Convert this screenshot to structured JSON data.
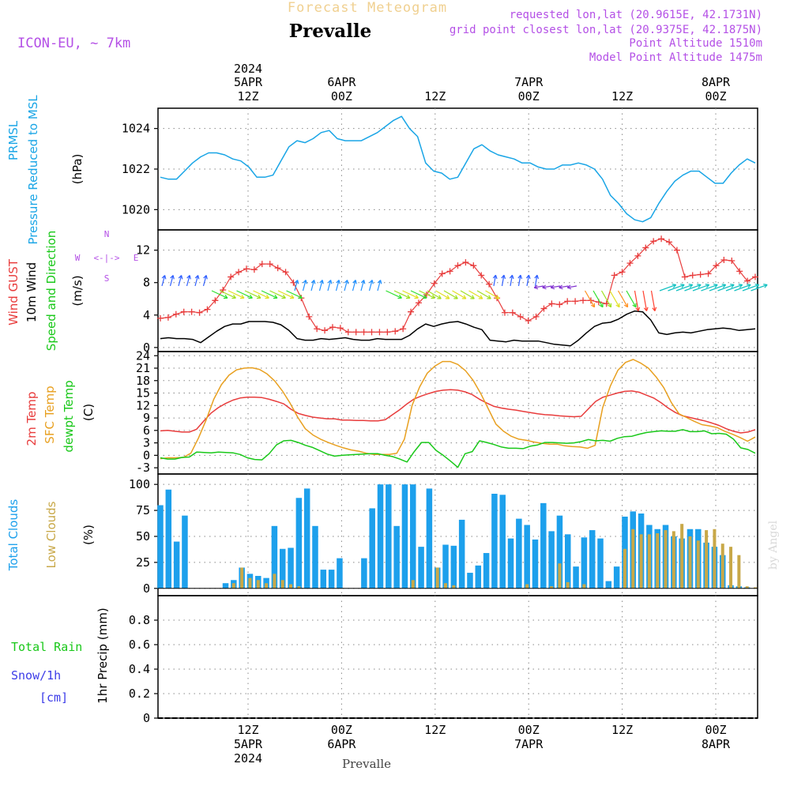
{
  "header": {
    "title": "Forecast Meteogram",
    "location": "Prevalle",
    "model": "ICON-EU, ~ 7km",
    "requested": "requested lon,lat (20.9615E, 42.1731N)",
    "grid_point": "grid point closest lon,lat (20.9375E, 42.1875N)",
    "point_altitude": "Point Altitude 1510m",
    "model_altitude": "Model Point Altitude 1475m",
    "footer_location": "Prevalle",
    "credit": "by Angel"
  },
  "time_axis": {
    "start": "5APR 03Z",
    "step_hours": 1,
    "hours": 64,
    "top_ticks": [
      {
        "hour": 9,
        "l1": "2024",
        "l2": "5APR",
        "l3": "12Z"
      },
      {
        "hour": 21,
        "l1": "",
        "l2": "6APR",
        "l3": "00Z"
      },
      {
        "hour": 33,
        "l1": "",
        "l2": "",
        "l3": "12Z"
      },
      {
        "hour": 45,
        "l1": "",
        "l2": "7APR",
        "l3": "00Z"
      },
      {
        "hour": 57,
        "l1": "",
        "l2": "",
        "l3": "12Z"
      },
      {
        "hour": 69,
        "l1": "",
        "l2": "8APR",
        "l3": "00Z"
      }
    ],
    "bottom_ticks": [
      {
        "hour": 9,
        "l1": "12Z",
        "l2": "5APR",
        "l3": "2024"
      },
      {
        "hour": 21,
        "l1": "00Z",
        "l2": "6APR",
        "l3": ""
      },
      {
        "hour": 33,
        "l1": "12Z",
        "l2": "",
        "l3": ""
      },
      {
        "hour": 45,
        "l1": "00Z",
        "l2": "7APR",
        "l3": ""
      },
      {
        "hour": 57,
        "l1": "12Z",
        "l2": "",
        "l3": ""
      },
      {
        "hour": 69,
        "l1": "00Z",
        "l2": "8APR",
        "l3": ""
      }
    ]
  },
  "colors": {
    "pressure": "#19a5e6",
    "gust": "#e83c3c",
    "wind": "#000000",
    "temp2m": "#e83c3c",
    "sfc": "#e8a020",
    "dew": "#19c819",
    "total_clouds": "#1da0ec",
    "low_clouds": "#c8a848",
    "rain": "#19c819",
    "snow": "#3c3ce8",
    "direction": "#19c819",
    "compass": "#b450e6",
    "grid": "#888888"
  },
  "chart_data": [
    {
      "id": "pressure",
      "type": "line",
      "ylabel_1": "PRMSL",
      "ylabel_2": "Pressure Reduced to MSL",
      "unit": "(hPa)",
      "ylim": [
        1019,
        1025
      ],
      "yticks": [
        1020,
        1022,
        1024
      ],
      "series": [
        {
          "name": "PRMSL",
          "values": [
            1021.6,
            1021.5,
            1021.5,
            1021.9,
            1022.3,
            1022.6,
            1022.8,
            1022.8,
            1022.7,
            1022.5,
            1022.4,
            1022.1,
            1021.6,
            1021.6,
            1021.7,
            1022.4,
            1023.1,
            1023.4,
            1023.3,
            1023.5,
            1023.8,
            1023.9,
            1023.5,
            1023.4,
            1023.4,
            1023.4,
            1023.6,
            1023.8,
            1024.1,
            1024.4,
            1024.6,
            1024.0,
            1023.6,
            1022.3,
            1021.9,
            1021.8,
            1021.5,
            1021.6,
            1022.3,
            1023.0,
            1023.2,
            1022.9,
            1022.7,
            1022.6,
            1022.5,
            1022.3,
            1022.3,
            1022.1,
            1022.0,
            1022.0,
            1022.2,
            1022.2,
            1022.3,
            1022.2,
            1022.0,
            1021.5,
            1020.7,
            1020.3,
            1019.8,
            1019.5,
            1019.4,
            1019.6,
            1020.3,
            1020.9,
            1021.4,
            1021.7,
            1021.9,
            1021.9,
            1021.6,
            1021.3,
            1021.3,
            1021.8,
            1022.2,
            1022.5,
            1022.3
          ]
        }
      ]
    },
    {
      "id": "wind",
      "type": "line",
      "ylabel_1": "Wind GUST",
      "ylabel_2": "10m Wind",
      "ylabel_3": "Speed and Direction",
      "unit": "(m/s)",
      "compass": {
        "n": "N",
        "s": "S",
        "e": "E",
        "w": "W",
        "axis": "<-|->"
      },
      "ylim": [
        -0.5,
        14.5
      ],
      "yticks": [
        0,
        4,
        8,
        12
      ],
      "series": [
        {
          "name": "Wind GUST",
          "values": [
            3.6,
            3.7,
            4.1,
            4.4,
            4.4,
            4.3,
            4.7,
            5.8,
            7.1,
            8.7,
            9.3,
            9.7,
            9.6,
            10.3,
            10.3,
            9.8,
            9.3,
            8.0,
            6.1,
            3.8,
            2.3,
            2.1,
            2.5,
            2.4,
            1.9,
            1.9,
            1.9,
            1.9,
            1.9,
            1.9,
            2.0,
            2.3,
            4.4,
            5.5,
            6.5,
            7.9,
            9.1,
            9.4,
            10.1,
            10.5,
            10.1,
            8.9,
            7.8,
            6.1,
            4.3,
            4.3,
            3.8,
            3.3,
            3.8,
            4.8,
            5.4,
            5.3,
            5.7,
            5.7,
            5.8,
            5.8,
            5.6,
            5.4,
            8.9,
            9.3,
            10.4,
            11.3,
            12.3,
            13.1,
            13.4,
            13.0,
            12.0,
            8.7,
            8.9,
            9.0,
            9.1,
            10.1,
            10.8,
            10.7,
            9.4,
            8.2,
            8.7
          ]
        },
        {
          "name": "10m Wind",
          "values": [
            1.1,
            1.2,
            1.1,
            1.1,
            1.0,
            0.6,
            1.3,
            2.0,
            2.6,
            2.9,
            2.9,
            3.2,
            3.2,
            3.2,
            3.1,
            2.8,
            2.1,
            1.1,
            0.9,
            0.9,
            1.1,
            1.0,
            1.1,
            1.2,
            1.0,
            0.9,
            0.9,
            1.1,
            1.0,
            1.0,
            1.0,
            1.5,
            2.3,
            2.9,
            2.6,
            2.9,
            3.1,
            3.2,
            2.9,
            2.5,
            2.2,
            0.9,
            0.8,
            0.7,
            0.9,
            0.8,
            0.8,
            0.8,
            0.6,
            0.4,
            0.3,
            0.2,
            0.9,
            1.8,
            2.6,
            3.0,
            3.1,
            3.5,
            4.1,
            4.5,
            4.4,
            3.4,
            1.8,
            1.6,
            1.8,
            1.9,
            1.8,
            2.0,
            2.2,
            2.3,
            2.4,
            2.3,
            2.1,
            2.2,
            2.3
          ]
        }
      ]
    },
    {
      "id": "temperature",
      "type": "line",
      "ylabel_1": "2m Temp",
      "ylabel_2": "SFC Temp",
      "ylabel_3": "dewpt Temp",
      "unit": "(C)",
      "ylim": [
        -4.5,
        25
      ],
      "yticks": [
        -3,
        0,
        3,
        6,
        9,
        12,
        15,
        18,
        21,
        24
      ],
      "series": [
        {
          "name": "2m Temp",
          "values": [
            5.9,
            6.0,
            5.8,
            5.6,
            5.6,
            6.3,
            8.3,
            10.2,
            11.5,
            12.5,
            13.3,
            13.8,
            14.0,
            14.0,
            13.9,
            13.5,
            13.0,
            12.4,
            11.1,
            10.1,
            9.6,
            9.2,
            9.0,
            8.8,
            8.8,
            8.5,
            8.5,
            8.4,
            8.4,
            8.3,
            8.3,
            8.6,
            9.8,
            11.0,
            12.4,
            13.6,
            14.3,
            14.9,
            15.4,
            15.7,
            15.8,
            15.7,
            15.3,
            14.6,
            13.5,
            12.6,
            11.8,
            11.4,
            11.1,
            10.9,
            10.6,
            10.3,
            10.0,
            9.8,
            9.7,
            9.5,
            9.4,
            9.3,
            9.4,
            11.2,
            13.0,
            14.0,
            14.5,
            15.0,
            15.4,
            15.5,
            15.2,
            14.5,
            13.8,
            12.7,
            11.4,
            10.3,
            9.5,
            9.1,
            8.7,
            8.3,
            7.8,
            7.2,
            6.4,
            5.8,
            5.4,
            5.6,
            6.2
          ]
        },
        {
          "name": "SFC Temp",
          "values": [
            -0.8,
            -0.6,
            -0.6,
            -0.5,
            0.5,
            4.2,
            8.5,
            13.5,
            17.0,
            19.3,
            20.6,
            21.0,
            21.1,
            20.7,
            19.6,
            17.9,
            15.5,
            12.6,
            9.2,
            6.4,
            4.9,
            3.9,
            3.1,
            2.4,
            1.8,
            1.3,
            1.0,
            0.5,
            0.2,
            0.2,
            0.2,
            0.5,
            3.9,
            12.0,
            16.5,
            19.8,
            21.5,
            22.6,
            22.6,
            21.9,
            20.4,
            18.1,
            14.9,
            11.2,
            7.5,
            5.8,
            4.6,
            3.9,
            3.6,
            3.2,
            2.9,
            2.7,
            2.7,
            2.3,
            2.1,
            2.0,
            1.7,
            2.4,
            11.5,
            16.7,
            20.5,
            22.4,
            23.1,
            22.2,
            21.0,
            18.9,
            16.3,
            12.7,
            10.0,
            9.1,
            8.2,
            7.4,
            7.1,
            6.7,
            5.8,
            5.1,
            4.3,
            3.4,
            4.4
          ]
        },
        {
          "name": "dewpt Temp",
          "values": [
            -0.6,
            -0.9,
            -0.9,
            -0.5,
            -0.4,
            0.8,
            0.7,
            0.6,
            0.8,
            0.7,
            0.6,
            0.2,
            -0.6,
            -1.0,
            -1.1,
            0.4,
            2.5,
            3.5,
            3.6,
            3.1,
            2.4,
            1.9,
            1.1,
            0.3,
            -0.2,
            0.0,
            0.1,
            0.2,
            0.3,
            0.4,
            0.4,
            0.0,
            -0.3,
            -0.9,
            -1.6,
            0.9,
            3.1,
            3.1,
            1.2,
            0.0,
            -1.4,
            -2.9,
            0.4,
            0.9,
            3.5,
            3.1,
            2.6,
            2.0,
            1.7,
            1.7,
            1.6,
            2.2,
            2.5,
            3.1,
            3.1,
            3.0,
            2.9,
            3.0,
            3.3,
            3.8,
            3.5,
            3.6,
            3.4,
            4.1,
            4.5,
            4.6,
            5.1,
            5.5,
            5.7,
            5.9,
            5.8,
            5.8,
            6.2,
            5.7,
            5.7,
            5.9,
            5.2,
            5.3,
            5.1,
            3.9,
            1.8,
            1.4,
            0.5
          ]
        }
      ]
    },
    {
      "id": "clouds",
      "type": "bar",
      "ylabel_1": "Total Clouds",
      "ylabel_2": "Low Clouds",
      "unit": "(%)",
      "ylim": [
        -7,
        110
      ],
      "yticks": [
        0,
        25,
        50,
        75,
        100
      ],
      "series": [
        {
          "name": "Total Clouds",
          "values": [
            80,
            95,
            45,
            70,
            0,
            0,
            0,
            0,
            5,
            8,
            20,
            14,
            12,
            10,
            60,
            38,
            39,
            87,
            96,
            60,
            18,
            18,
            29,
            0,
            0,
            29,
            77,
            100,
            100,
            60,
            100,
            100,
            40,
            96,
            20,
            42,
            41,
            66,
            15,
            22,
            34,
            91,
            90,
            48,
            67,
            61,
            47,
            82,
            55,
            70,
            52,
            21,
            49,
            56,
            48,
            7,
            21,
            69,
            74,
            72,
            61,
            57,
            61,
            50,
            48,
            57,
            57,
            44,
            40,
            32,
            3,
            2,
            1,
            0
          ]
        },
        {
          "name": "Low Clouds",
          "values": [
            0,
            0,
            0,
            0,
            0,
            0,
            0,
            0,
            0,
            5,
            20,
            10,
            8,
            5,
            14,
            8,
            4,
            2,
            0,
            0,
            0,
            0,
            0,
            0,
            0,
            0,
            0,
            0,
            0,
            0,
            0,
            8,
            0,
            0,
            20,
            5,
            3,
            0,
            0,
            0,
            0,
            0,
            0,
            0,
            0,
            4,
            0,
            0,
            2,
            24,
            6,
            0,
            4,
            0,
            0,
            0,
            0,
            38,
            57,
            52,
            52,
            53,
            56,
            55,
            62,
            50,
            46,
            56,
            57,
            43,
            40,
            32,
            2,
            1,
            0
          ]
        }
      ]
    },
    {
      "id": "precip",
      "type": "bar",
      "ylabel_1": "Total Rain",
      "ylabel_2": "Snow/1h",
      "ylabel_3": "[cm]",
      "unit": "1hr Precip (mm)",
      "ylim": [
        0,
        1
      ],
      "yticks": [
        0,
        0.2,
        0.4,
        0.6,
        0.8
      ],
      "ytick_labels": [
        "0",
        "0.2",
        "0.4",
        "0.6",
        "0.8"
      ],
      "series": [
        {
          "name": "Total Rain",
          "values": []
        },
        {
          "name": "Snow/1h",
          "values": []
        }
      ]
    }
  ]
}
